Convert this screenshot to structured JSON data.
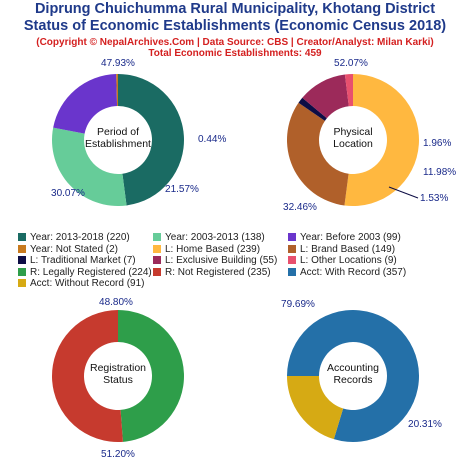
{
  "header": {
    "title_line1": "Diprung Chuichumma Rural Municipality, Khotang District",
    "title_line2": "Status of Economic Establishments (Economic Census 2018)",
    "copyright": "(Copyright © NepalArchives.Com | Data Source: CBS | Creator/Analyst: Milan Karki)",
    "total": "Total Economic Establishments: 459"
  },
  "legend": [
    {
      "label": "Year: 2013-2018 (220)",
      "color": "#1a6b63"
    },
    {
      "label": "Year: 2003-2013 (138)",
      "color": "#66cc99"
    },
    {
      "label": "Year: Before 2003 (99)",
      "color": "#6a35cc"
    },
    {
      "label": "Year: Not Stated (2)",
      "color": "#c87a1e"
    },
    {
      "label": "L: Home Based (239)",
      "color": "#ffb840"
    },
    {
      "label": "L: Brand Based (149)",
      "color": "#b0602a"
    },
    {
      "label": "L: Traditional Market (7)",
      "color": "#0d0d45"
    },
    {
      "label": "L: Exclusive Building (55)",
      "color": "#9c2a5a"
    },
    {
      "label": "L: Other Locations (9)",
      "color": "#e8506e"
    },
    {
      "label": "R: Legally Registered (224)",
      "color": "#2e9e4a"
    },
    {
      "label": "R: Not Registered (235)",
      "color": "#c63a2e"
    },
    {
      "label": "Acct: With Record (357)",
      "color": "#2470a8"
    },
    {
      "label": "Acct: Without Record (91)",
      "color": "#d6aa14"
    }
  ],
  "chart_data": [
    {
      "type": "pie",
      "title": "Period of\nEstablishment",
      "categories": [
        "Year: 2013-2018",
        "Year: 2003-2013",
        "Year: Before 2003",
        "Year: Not Stated"
      ],
      "values": [
        220,
        138,
        99,
        2
      ],
      "labels": [
        "47.93%",
        "30.07%",
        "21.57%",
        "0.44%"
      ],
      "colors": [
        "#1a6b63",
        "#66cc99",
        "#6a35cc",
        "#c87a1e"
      ]
    },
    {
      "type": "pie",
      "title": "Physical\nLocation",
      "categories": [
        "L: Home Based",
        "L: Brand Based",
        "L: Traditional Market",
        "L: Exclusive Building",
        "L: Other Locations"
      ],
      "values": [
        239,
        149,
        7,
        55,
        9
      ],
      "labels": [
        "52.07%",
        "32.46%",
        "1.53%",
        "11.98%",
        "1.96%"
      ],
      "colors": [
        "#ffb840",
        "#b0602a",
        "#0d0d45",
        "#9c2a5a",
        "#e8506e"
      ]
    },
    {
      "type": "pie",
      "title": "Registration\nStatus",
      "categories": [
        "R: Legally Registered",
        "R: Not Registered"
      ],
      "values": [
        224,
        235
      ],
      "labels": [
        "48.80%",
        "51.20%"
      ],
      "colors": [
        "#2e9e4a",
        "#c63a2e"
      ]
    },
    {
      "type": "pie",
      "title": "Accounting\nRecords",
      "categories": [
        "Acct: With Record",
        "Acct: Without Record"
      ],
      "values": [
        357,
        91
      ],
      "labels": [
        "79.69%",
        "20.31%"
      ],
      "colors": [
        "#2470a8",
        "#d6aa14"
      ]
    }
  ]
}
